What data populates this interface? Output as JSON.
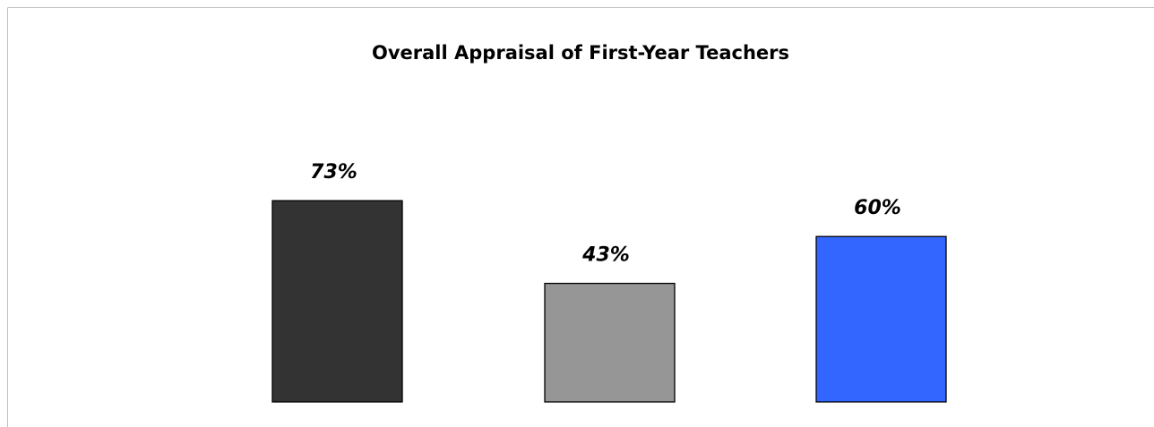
{
  "chart_data": {
    "type": "bar",
    "title": "Overall Appraisal of First-Year Teachers",
    "values": [
      73,
      43,
      60
    ],
    "value_labels": [
      "73%",
      "43%",
      "60%"
    ],
    "colors": [
      "#333333",
      "#969696",
      "#3366ff"
    ]
  }
}
